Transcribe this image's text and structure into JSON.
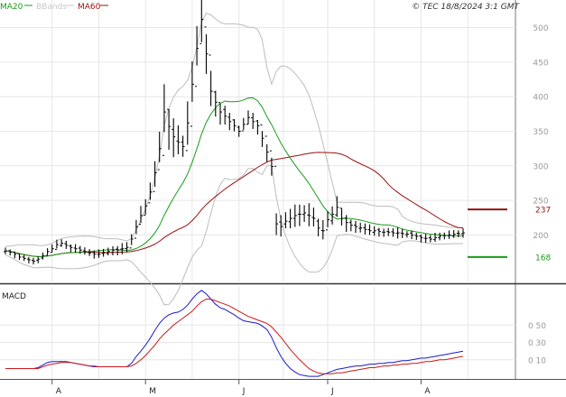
{
  "header": {
    "legend": [
      {
        "label": "MA20",
        "color": "#1a9a1a"
      },
      {
        "label": "BBands",
        "color": "#bdbdbd"
      },
      {
        "label": "MA60",
        "color": "#9a1010"
      }
    ],
    "copyright": "© TEC 18/8/2024 3:1 GMT"
  },
  "chart_data": [
    {
      "type": "candlestick",
      "panel": "price",
      "y_ticks": [
        200,
        250,
        300,
        350,
        400,
        450,
        500
      ],
      "ylim": [
        130,
        540
      ],
      "grid": true,
      "x_tick_labels": [
        "A",
        "M",
        "J",
        "J",
        "A"
      ],
      "x_tick_index": [
        10,
        30,
        50,
        69,
        89
      ],
      "n_bars": 99,
      "close": [
        177,
        175,
        172,
        168,
        166,
        164,
        162,
        165,
        170,
        176,
        180,
        186,
        188,
        185,
        182,
        180,
        178,
        176,
        174,
        172,
        172,
        174,
        176,
        178,
        178,
        180,
        182,
        194,
        212,
        228,
        242,
        262,
        290,
        325,
        378,
        357,
        342,
        334,
        328,
        362,
        418,
        470,
        512,
        462,
        408,
        392,
        378,
        372,
        364,
        358,
        350,
        360,
        370,
        364,
        358,
        340,
        320,
        299,
        216,
        212,
        220,
        224,
        228,
        230,
        232,
        228,
        224,
        210,
        206,
        222,
        230,
        240,
        224,
        218,
        214,
        212,
        210,
        208,
        206,
        206,
        205,
        204,
        204,
        203,
        203,
        202,
        201,
        200,
        198,
        196,
        195,
        194,
        196,
        198,
        199,
        200,
        201,
        202,
        203
      ],
      "ranges": [
        10,
        10,
        10,
        10,
        10,
        10,
        10,
        10,
        12,
        12,
        12,
        12,
        12,
        12,
        12,
        12,
        12,
        12,
        12,
        12,
        12,
        12,
        12,
        14,
        14,
        14,
        14,
        20,
        24,
        26,
        28,
        30,
        36,
        52,
        70,
        64,
        52,
        44,
        42,
        56,
        70,
        68,
        78,
        74,
        58,
        44,
        34,
        28,
        24,
        22,
        22,
        22,
        22,
        22,
        22,
        22,
        24,
        28,
        28,
        28,
        28,
        28,
        30,
        30,
        30,
        30,
        30,
        28,
        26,
        28,
        28,
        28,
        26,
        24,
        22,
        20,
        18,
        16,
        16,
        16,
        14,
        14,
        14,
        14,
        14,
        12,
        12,
        12,
        12,
        12,
        12,
        12,
        12,
        12,
        12,
        12,
        12,
        12,
        12
      ],
      "overlays": [
        {
          "name": "MA20",
          "role": "moving-average",
          "color": "#1a9a1a",
          "marker_value": 168
        },
        {
          "name": "BBands",
          "role": "bollinger-bands",
          "color": "#bdbdbd"
        },
        {
          "name": "MA60",
          "role": "moving-average",
          "color": "#9a1010",
          "marker_value": 237
        }
      ]
    },
    {
      "type": "line",
      "panel": "MACD",
      "title": "MACD",
      "y_ticks": [
        10,
        30,
        50
      ],
      "y_tick_labels": [
        "0 10",
        "0 30",
        "0 50"
      ],
      "ylim": [
        -12,
        94
      ],
      "series": [
        {
          "name": "macd",
          "color": "#1a1acc",
          "values": [
            0,
            0,
            0,
            0,
            0,
            0,
            0,
            1,
            4,
            7,
            8,
            8,
            8,
            8,
            7,
            6,
            5,
            4,
            3,
            2,
            2,
            2,
            2,
            2,
            2,
            2,
            2,
            6,
            14,
            20,
            27,
            35,
            44,
            52,
            58,
            62,
            64,
            65,
            68,
            73,
            80,
            86,
            90,
            86,
            80,
            74,
            70,
            68,
            65,
            62,
            58,
            55,
            54,
            53,
            52,
            49,
            45,
            36,
            24,
            14,
            6,
            0,
            -4,
            -7,
            -8,
            -9,
            -9,
            -9,
            -7,
            -5,
            -3,
            -1,
            0,
            1,
            2,
            3,
            3,
            4,
            5,
            5,
            6,
            6,
            7,
            7,
            8,
            9,
            9,
            10,
            11,
            12,
            12,
            13,
            14,
            15,
            16,
            17,
            18,
            19,
            20
          ]
        },
        {
          "name": "signal",
          "color": "#cc1a1a",
          "values": [
            0,
            0,
            0,
            0,
            0,
            0,
            0,
            0,
            2,
            4,
            5,
            6,
            7,
            7,
            7,
            6,
            5,
            4,
            3,
            3,
            2,
            2,
            2,
            2,
            2,
            2,
            2,
            3,
            6,
            10,
            15,
            21,
            27,
            34,
            40,
            45,
            50,
            54,
            58,
            62,
            66,
            72,
            77,
            80,
            80,
            78,
            76,
            74,
            72,
            69,
            66,
            63,
            60,
            58,
            56,
            54,
            52,
            48,
            42,
            36,
            29,
            22,
            16,
            10,
            5,
            0,
            -3,
            -5,
            -6,
            -6,
            -6,
            -5,
            -5,
            -4,
            -3,
            -2,
            -1,
            0,
            1,
            1,
            2,
            3,
            3,
            4,
            4,
            5,
            5,
            6,
            6,
            7,
            8,
            8,
            9,
            10,
            10,
            11,
            12,
            13,
            14
          ]
        }
      ]
    }
  ]
}
